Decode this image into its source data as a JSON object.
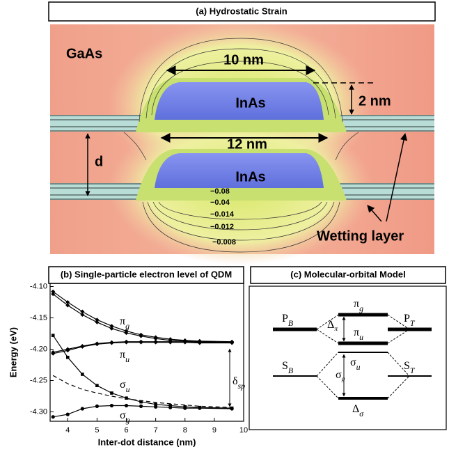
{
  "strain_panel": {
    "title": "(a) Hydrostatic Strain",
    "barrier": "GaAs",
    "dot_top": "InAs",
    "dot_bottom": "InAs",
    "width_top": "10 nm",
    "height": "2 nm",
    "width_bottom": "12 nm",
    "separation": "d",
    "contours": [
      "−0.08",
      "−0.04",
      "−0.014",
      "−0.012",
      "−0.008"
    ],
    "wetting_label": "Wetting layer"
  },
  "chart_data": {
    "type": "line",
    "title": "(b) Single-particle electron level of QDM",
    "x_label": "Inter-dot distance (nm)",
    "y_label": "Energy (eV)",
    "x": [
      3.5,
      4,
      4.5,
      5,
      5.5,
      6,
      6.5,
      7,
      7.5,
      8,
      8.5,
      9.6
    ],
    "xlim": [
      3.4,
      10
    ],
    "ylim": [
      -4.315,
      -4.095
    ],
    "xticks": [
      4,
      5,
      6,
      7,
      8,
      9,
      10
    ],
    "yticks": [
      {
        "value": -4.1,
        "label": "-4.10"
      },
      -4.15,
      {
        "value": -4.2,
        "label": "-4.20"
      },
      -4.25,
      {
        "value": -4.3,
        "label": "-4.30"
      }
    ],
    "series": [
      {
        "color": "#000000",
        "marker": "diamond",
        "dash": false,
        "values": [
          -4.108,
          -4.125,
          -4.14,
          -4.153,
          -4.163,
          -4.171,
          -4.177,
          -4.181,
          -4.184,
          -4.186,
          -4.187,
          -4.188
        ]
      },
      {
        "color": "#000000",
        "marker": "diamond",
        "dash": false,
        "values": [
          -4.112,
          -4.13,
          -4.145,
          -4.157,
          -4.167,
          -4.174,
          -4.179,
          -4.183,
          -4.186,
          -4.187,
          -4.188,
          -4.189
        ]
      },
      {
        "color": "#000000",
        "marker": "diamond",
        "dash": false,
        "values": [
          -4.205,
          -4.2,
          -4.195,
          -4.191,
          -4.189,
          -4.188,
          -4.188,
          -4.188,
          -4.188,
          -4.188,
          -4.189,
          -4.189
        ]
      },
      {
        "color": "#000000",
        "marker": "diamond",
        "dash": false,
        "values": [
          -4.207,
          -4.202,
          -4.196,
          -4.192,
          -4.19,
          -4.189,
          -4.189,
          -4.189,
          -4.189,
          -4.189,
          -4.19,
          -4.19
        ]
      },
      {
        "color": "#000000",
        "marker": "square",
        "dash": false,
        "values": [
          -4.178,
          -4.213,
          -4.24,
          -4.258,
          -4.27,
          -4.278,
          -4.284,
          -4.288,
          -4.29,
          -4.292,
          -4.293,
          -4.294
        ]
      },
      {
        "color": "#000000",
        "marker": "none",
        "dash": true,
        "values": [
          -4.242,
          -4.255,
          -4.264,
          -4.27,
          -4.275,
          -4.279,
          -4.282,
          -4.285,
          -4.287,
          -4.289,
          -4.291,
          -4.293
        ]
      },
      {
        "color": "#000000",
        "marker": "circle",
        "dash": false,
        "values": [
          -4.308,
          -4.304,
          -4.295,
          -4.291,
          -4.29,
          -4.29,
          -4.291,
          -4.292,
          -4.293,
          -4.294,
          -4.294,
          -4.295
        ]
      }
    ],
    "annotations": [
      {
        "text": "π",
        "sub": "g"
      },
      {
        "text": "π",
        "sub": "u"
      },
      {
        "text": "σ",
        "sub": "u"
      },
      {
        "text": "σ",
        "sub": "g"
      },
      {
        "text": "δ",
        "sub": "sp"
      }
    ]
  },
  "orbital_panel": {
    "title": "(c) Molecular-orbital Model",
    "labels": [
      {
        "text": "P",
        "sub": "B"
      },
      {
        "text": "P",
        "sub": "T"
      },
      {
        "text": "π",
        "sub": "g"
      },
      {
        "text": "π",
        "sub": "u"
      },
      {
        "text": "Δ",
        "sub": "π"
      },
      {
        "text": "S",
        "sub": "B"
      },
      {
        "text": "S",
        "sub": "T"
      },
      {
        "text": "σ",
        "sub": "u"
      },
      {
        "text": "σ",
        "sub": "g"
      },
      {
        "text": "Δ",
        "sub": "σ"
      }
    ]
  }
}
